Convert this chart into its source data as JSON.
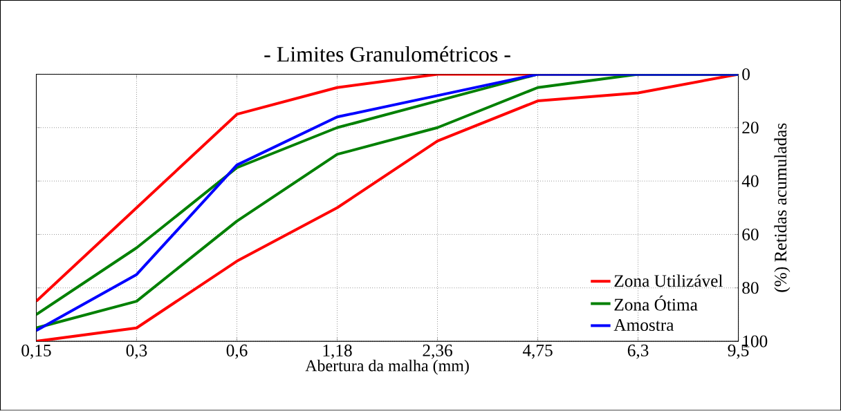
{
  "chart_data": {
    "type": "line",
    "title": "- Limites Granulométricos -",
    "xlabel": "Abertura da malha (mm)",
    "ylabel": "(%) Retidas acumuladas",
    "categories": [
      "0,15",
      "0,3",
      "0,6",
      "1,18",
      "2,36",
      "4,75",
      "6,3",
      "9,5"
    ],
    "series": [
      {
        "name": "Zona Utilizável",
        "color": "#ff0000",
        "values": [
          85,
          50,
          15,
          5,
          0,
          0,
          0,
          0
        ]
      },
      {
        "color": "#ff0000",
        "values": [
          100,
          95,
          70,
          50,
          25,
          10,
          7,
          0
        ]
      },
      {
        "name": "Zona Ótima",
        "color": "#008000",
        "values": [
          90,
          65,
          35,
          20,
          10,
          0,
          0,
          0
        ]
      },
      {
        "color": "#008000",
        "values": [
          95,
          85,
          55,
          30,
          20,
          5,
          0,
          0
        ]
      },
      {
        "name": "Amostra",
        "color": "#0000ff",
        "values": [
          96,
          75,
          34,
          16,
          8,
          0,
          0,
          0
        ]
      }
    ],
    "ylim": [
      100,
      0
    ],
    "yticks": [
      0,
      20,
      40,
      60,
      80,
      100
    ],
    "grid": true,
    "legend": "bottom right",
    "marker": "none",
    "line_style": "solid"
  }
}
